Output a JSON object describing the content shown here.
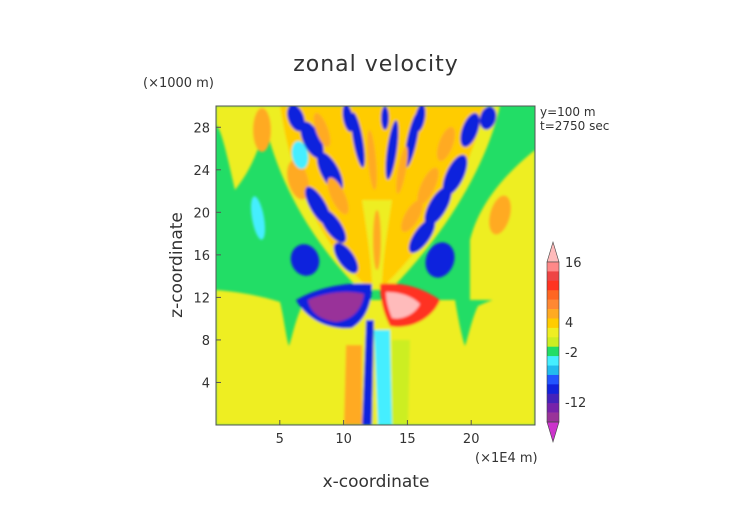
{
  "chart_data": {
    "type": "heatmap",
    "title": "zonal velocity",
    "xlabel": "x-coordinate",
    "ylabel": "z-coordinate",
    "x_unit": "(×1E4 m)",
    "y_unit": "(×1000 m)",
    "annotation_lines": [
      "y=100 m",
      "t=2750 sec"
    ],
    "xlim": [
      0,
      25
    ],
    "ylim": [
      0,
      30
    ],
    "x_ticks": [
      5,
      10,
      15,
      20
    ],
    "y_ticks": [
      4,
      8,
      12,
      16,
      20,
      24,
      28
    ],
    "colorbar": {
      "levels": [
        -20,
        -16,
        -14,
        -12,
        -10,
        -8,
        -6,
        -4,
        -2,
        0,
        2,
        4,
        6,
        8,
        10,
        12,
        14,
        16,
        20
      ],
      "colors": [
        "#cc33cc",
        "#993399",
        "#7722aa",
        "#4422bb",
        "#1122dd",
        "#2255ff",
        "#22bbee",
        "#44eeff",
        "#22dd66",
        "#ccee22",
        "#eeee22",
        "#ffcc00",
        "#ffaa22",
        "#ff8833",
        "#ff6622",
        "#ff3322",
        "#ee4444",
        "#ff8888",
        "#ffbbbb"
      ],
      "tick_labels": [
        "16",
        "4",
        "-2",
        "-12"
      ],
      "tick_values": [
        16,
        4,
        -2,
        -12
      ]
    }
  }
}
